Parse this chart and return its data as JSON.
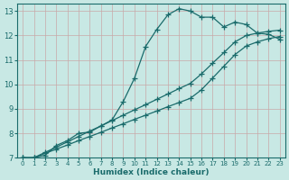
{
  "xlabel": "Humidex (Indice chaleur)",
  "ylabel": "",
  "bg_color": "#c8e8e4",
  "grid_color": "#c8a8a8",
  "line_color": "#1a6b6b",
  "xlim": [
    -0.5,
    23.5
  ],
  "ylim": [
    7,
    13.3
  ],
  "xticks": [
    0,
    1,
    2,
    3,
    4,
    5,
    6,
    7,
    8,
    9,
    10,
    11,
    12,
    13,
    14,
    15,
    16,
    17,
    18,
    19,
    20,
    21,
    22,
    23
  ],
  "yticks": [
    7,
    8,
    9,
    10,
    11,
    12,
    13
  ],
  "line1_x": [
    0,
    1,
    2,
    3,
    4,
    5,
    6,
    7,
    8,
    9,
    10,
    11,
    12,
    13,
    14,
    15,
    16,
    17,
    18,
    19,
    20,
    21,
    22,
    23
  ],
  "line1_y": [
    7.0,
    7.0,
    7.1,
    7.5,
    7.7,
    8.0,
    8.05,
    8.3,
    8.55,
    9.3,
    10.25,
    11.55,
    12.25,
    12.85,
    13.1,
    13.0,
    12.75,
    12.75,
    12.35,
    12.55,
    12.45,
    12.1,
    12.05,
    11.85
  ],
  "line2_x": [
    0,
    1,
    2,
    3,
    4,
    5,
    6,
    7,
    8,
    9,
    10,
    11,
    12,
    13,
    14,
    15,
    16,
    17,
    18,
    19,
    20,
    21,
    22,
    23
  ],
  "line2_y": [
    7.0,
    7.0,
    7.22,
    7.43,
    7.65,
    7.87,
    8.09,
    8.3,
    8.52,
    8.74,
    8.96,
    9.17,
    9.39,
    9.61,
    9.83,
    10.04,
    10.43,
    10.87,
    11.3,
    11.74,
    12.0,
    12.1,
    12.17,
    12.22
  ],
  "line3_x": [
    0,
    1,
    2,
    3,
    4,
    5,
    6,
    7,
    8,
    9,
    10,
    11,
    12,
    13,
    14,
    15,
    16,
    17,
    18,
    19,
    20,
    21,
    22,
    23
  ],
  "line3_y": [
    7.0,
    7.0,
    7.18,
    7.35,
    7.52,
    7.7,
    7.87,
    8.04,
    8.22,
    8.39,
    8.57,
    8.74,
    8.91,
    9.09,
    9.26,
    9.43,
    9.78,
    10.26,
    10.74,
    11.22,
    11.57,
    11.74,
    11.87,
    11.96
  ]
}
